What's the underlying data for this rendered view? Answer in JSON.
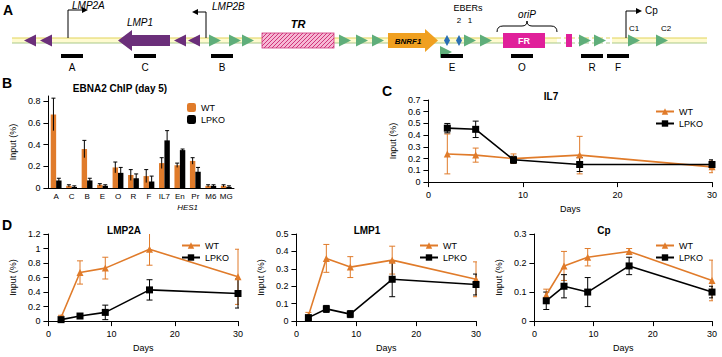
{
  "diagram": {
    "panel": "A",
    "labels": [
      "LMP2A",
      "LMP1",
      "LMP2B",
      "TR",
      "BNRF1",
      "EBERs",
      "2",
      "1",
      "oriP",
      "FR",
      "Cp",
      "C1",
      "C2"
    ],
    "probes": [
      "A",
      "C",
      "B",
      "E",
      "O",
      "R",
      "F"
    ]
  },
  "chart_data": [
    {
      "type": "bar",
      "title": "EBNA2 ChIP (day 5)",
      "annotations": [
        {
          "text": "B"
        },
        {
          "text": "HES1",
          "under": [
            "En",
            "Pr"
          ]
        }
      ],
      "ylabel": "Input (%)",
      "categories": [
        "A",
        "C",
        "B",
        "E",
        "O",
        "R",
        "F",
        "IL7",
        "En",
        "Pr",
        "M6",
        "MG"
      ],
      "series": [
        {
          "name": "WT",
          "color": "#e07b2a",
          "values": [
            0.68,
            0.02,
            0.36,
            0.03,
            0.19,
            0.12,
            0.11,
            0.23,
            0.21,
            0.25,
            0.02,
            0.02
          ],
          "errors": [
            0.15,
            0.01,
            0.08,
            0.01,
            0.05,
            0.05,
            0.06,
            0.05,
            0.02,
            0.03,
            0.01,
            0.01
          ]
        },
        {
          "name": "LPKO",
          "color": "#000000",
          "values": [
            0.07,
            0.01,
            0.07,
            0.02,
            0.14,
            0.09,
            0.06,
            0.44,
            0.35,
            0.15,
            0.02,
            0.01
          ],
          "errors": [
            0.02,
            0.01,
            0.02,
            0.01,
            0.05,
            0.04,
            0.05,
            0.09,
            0.01,
            0.04,
            0.01,
            0.01
          ]
        }
      ],
      "ylim": [
        0,
        0.85
      ],
      "yticks": [
        0,
        0.2,
        0.4,
        0.6,
        0.8
      ],
      "legend": "top-right",
      "grid": false
    },
    {
      "type": "line",
      "title": "IL7",
      "annotations": [
        {
          "text": "C"
        }
      ],
      "xlabel": "Days",
      "ylabel": "Input (%)",
      "x": [
        2,
        5,
        9,
        16,
        30
      ],
      "series": [
        {
          "name": "WT",
          "color": "#e07b2a",
          "marker": "triangle",
          "values": [
            0.24,
            0.23,
            0.2,
            0.23,
            0.13
          ],
          "errors": [
            0.17,
            0.06,
            0.04,
            0.16,
            0.05
          ]
        },
        {
          "name": "LPKO",
          "color": "#000000",
          "marker": "square",
          "values": [
            0.46,
            0.45,
            0.19,
            0.15,
            0.15
          ],
          "errors": [
            0.04,
            0.07,
            0.03,
            0.06,
            0.04
          ]
        }
      ],
      "xlim": [
        0,
        30
      ],
      "xticks": [
        0,
        10,
        20,
        30
      ],
      "ylim": [
        0,
        0.7
      ],
      "yticks": [
        0,
        0.1,
        0.2,
        0.3,
        0.4,
        0.5,
        0.6,
        0.7
      ],
      "legend": "top-right",
      "grid": false
    },
    {
      "type": "line",
      "title": "LMP2A",
      "annotations": [
        {
          "text": "D"
        }
      ],
      "xlabel": "Days",
      "ylabel": "Input (%)",
      "x": [
        2,
        5,
        9,
        16,
        30
      ],
      "series": [
        {
          "name": "WT",
          "color": "#e07b2a",
          "marker": "triangle",
          "values": [
            0.05,
            0.67,
            0.73,
            0.99,
            0.61
          ],
          "errors": [
            0.03,
            0.16,
            0.15,
            0.22,
            0.38
          ]
        },
        {
          "name": "LPKO",
          "color": "#000000",
          "marker": "square",
          "values": [
            0.02,
            0.07,
            0.12,
            0.43,
            0.38
          ],
          "errors": [
            0.01,
            0.03,
            0.1,
            0.14,
            0.2
          ]
        }
      ],
      "xlim": [
        0,
        30
      ],
      "xticks": [
        0,
        10,
        20,
        30
      ],
      "ylim": [
        0,
        1.2
      ],
      "yticks": [
        0,
        0.2,
        0.4,
        0.6,
        0.8,
        1,
        1.2
      ],
      "legend": "top-right",
      "grid": false
    },
    {
      "type": "line",
      "title": "LMP1",
      "xlabel": "Days",
      "ylabel": "Input (%)",
      "x": [
        2,
        5,
        9,
        16,
        30
      ],
      "series": [
        {
          "name": "WT",
          "color": "#e07b2a",
          "marker": "triangle",
          "values": [
            0.03,
            0.36,
            0.31,
            0.35,
            0.24
          ],
          "errors": [
            0.02,
            0.08,
            0.06,
            0.08,
            0.1
          ]
        },
        {
          "name": "LPKO",
          "color": "#000000",
          "marker": "square",
          "values": [
            0.02,
            0.07,
            0.04,
            0.24,
            0.21
          ],
          "errors": [
            0.01,
            0.02,
            0.02,
            0.1,
            0.06
          ]
        }
      ],
      "xlim": [
        0,
        30
      ],
      "xticks": [
        0,
        10,
        20,
        30
      ],
      "ylim": [
        0,
        0.5
      ],
      "yticks": [
        0,
        0.1,
        0.2,
        0.3,
        0.4,
        0.5
      ],
      "legend": "top-right",
      "grid": false
    },
    {
      "type": "line",
      "title": "Cp",
      "xlabel": "Days",
      "ylabel": "Input (%)",
      "x": [
        2,
        5,
        9,
        16,
        30
      ],
      "series": [
        {
          "name": "WT",
          "color": "#e07b2a",
          "marker": "triangle",
          "values": [
            0.09,
            0.19,
            0.22,
            0.24,
            0.14
          ],
          "errors": [
            0.02,
            0.05,
            0.03,
            0.01,
            0.07
          ]
        },
        {
          "name": "LPKO",
          "color": "#000000",
          "marker": "square",
          "values": [
            0.07,
            0.12,
            0.1,
            0.19,
            0.1
          ],
          "errors": [
            0.03,
            0.04,
            0.05,
            0.03,
            0.02
          ]
        }
      ],
      "xlim": [
        0,
        30
      ],
      "xticks": [
        0,
        10,
        20,
        30
      ],
      "ylim": [
        0,
        0.3
      ],
      "yticks": [
        0,
        0.1,
        0.2,
        0.3
      ],
      "legend": "top-right",
      "grid": false
    }
  ]
}
